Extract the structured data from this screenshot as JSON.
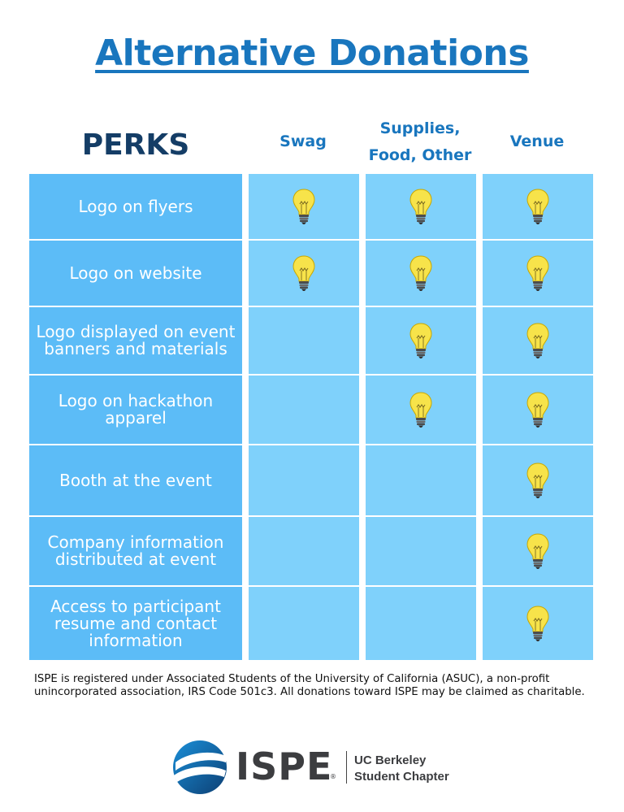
{
  "title": "Alternative Donations",
  "table": {
    "perks_header": "PERKS",
    "columns": [
      "Swag",
      "Supplies, Food, Other",
      "Venue"
    ],
    "rows": [
      {
        "perk": "Logo on flyers",
        "swag": true,
        "supplies": true,
        "venue": true
      },
      {
        "perk": "Logo on website",
        "swag": true,
        "supplies": true,
        "venue": true
      },
      {
        "perk": "Logo displayed on event banners and materials",
        "swag": false,
        "supplies": true,
        "venue": true
      },
      {
        "perk": "Logo on hackathon apparel",
        "swag": false,
        "supplies": true,
        "venue": true
      },
      {
        "perk": "Booth at the event",
        "swag": false,
        "supplies": false,
        "venue": true
      },
      {
        "perk": "Company information distributed at event",
        "swag": false,
        "supplies": false,
        "venue": true
      },
      {
        "perk": "Access to participant resume and contact information",
        "swag": false,
        "supplies": false,
        "venue": true
      }
    ],
    "included_icon": "lightbulb-icon"
  },
  "footnote": "ISPE is registered under Associated Students of the University of California (ASUC), a non-profit unincorporated association, IRS Code 501c3. All donations toward ISPE may be claimed as charitable.",
  "logo": {
    "name": "ISPE",
    "registered": "®",
    "chapter_line1": "UC Berkeley",
    "chapter_line2": "Student Chapter"
  },
  "colors": {
    "title": "#1976be",
    "perks_header": "#143d66",
    "perk_cell": "#5cbcf7",
    "value_cell": "#7fd1fb",
    "bulb": "#f7e34a"
  }
}
